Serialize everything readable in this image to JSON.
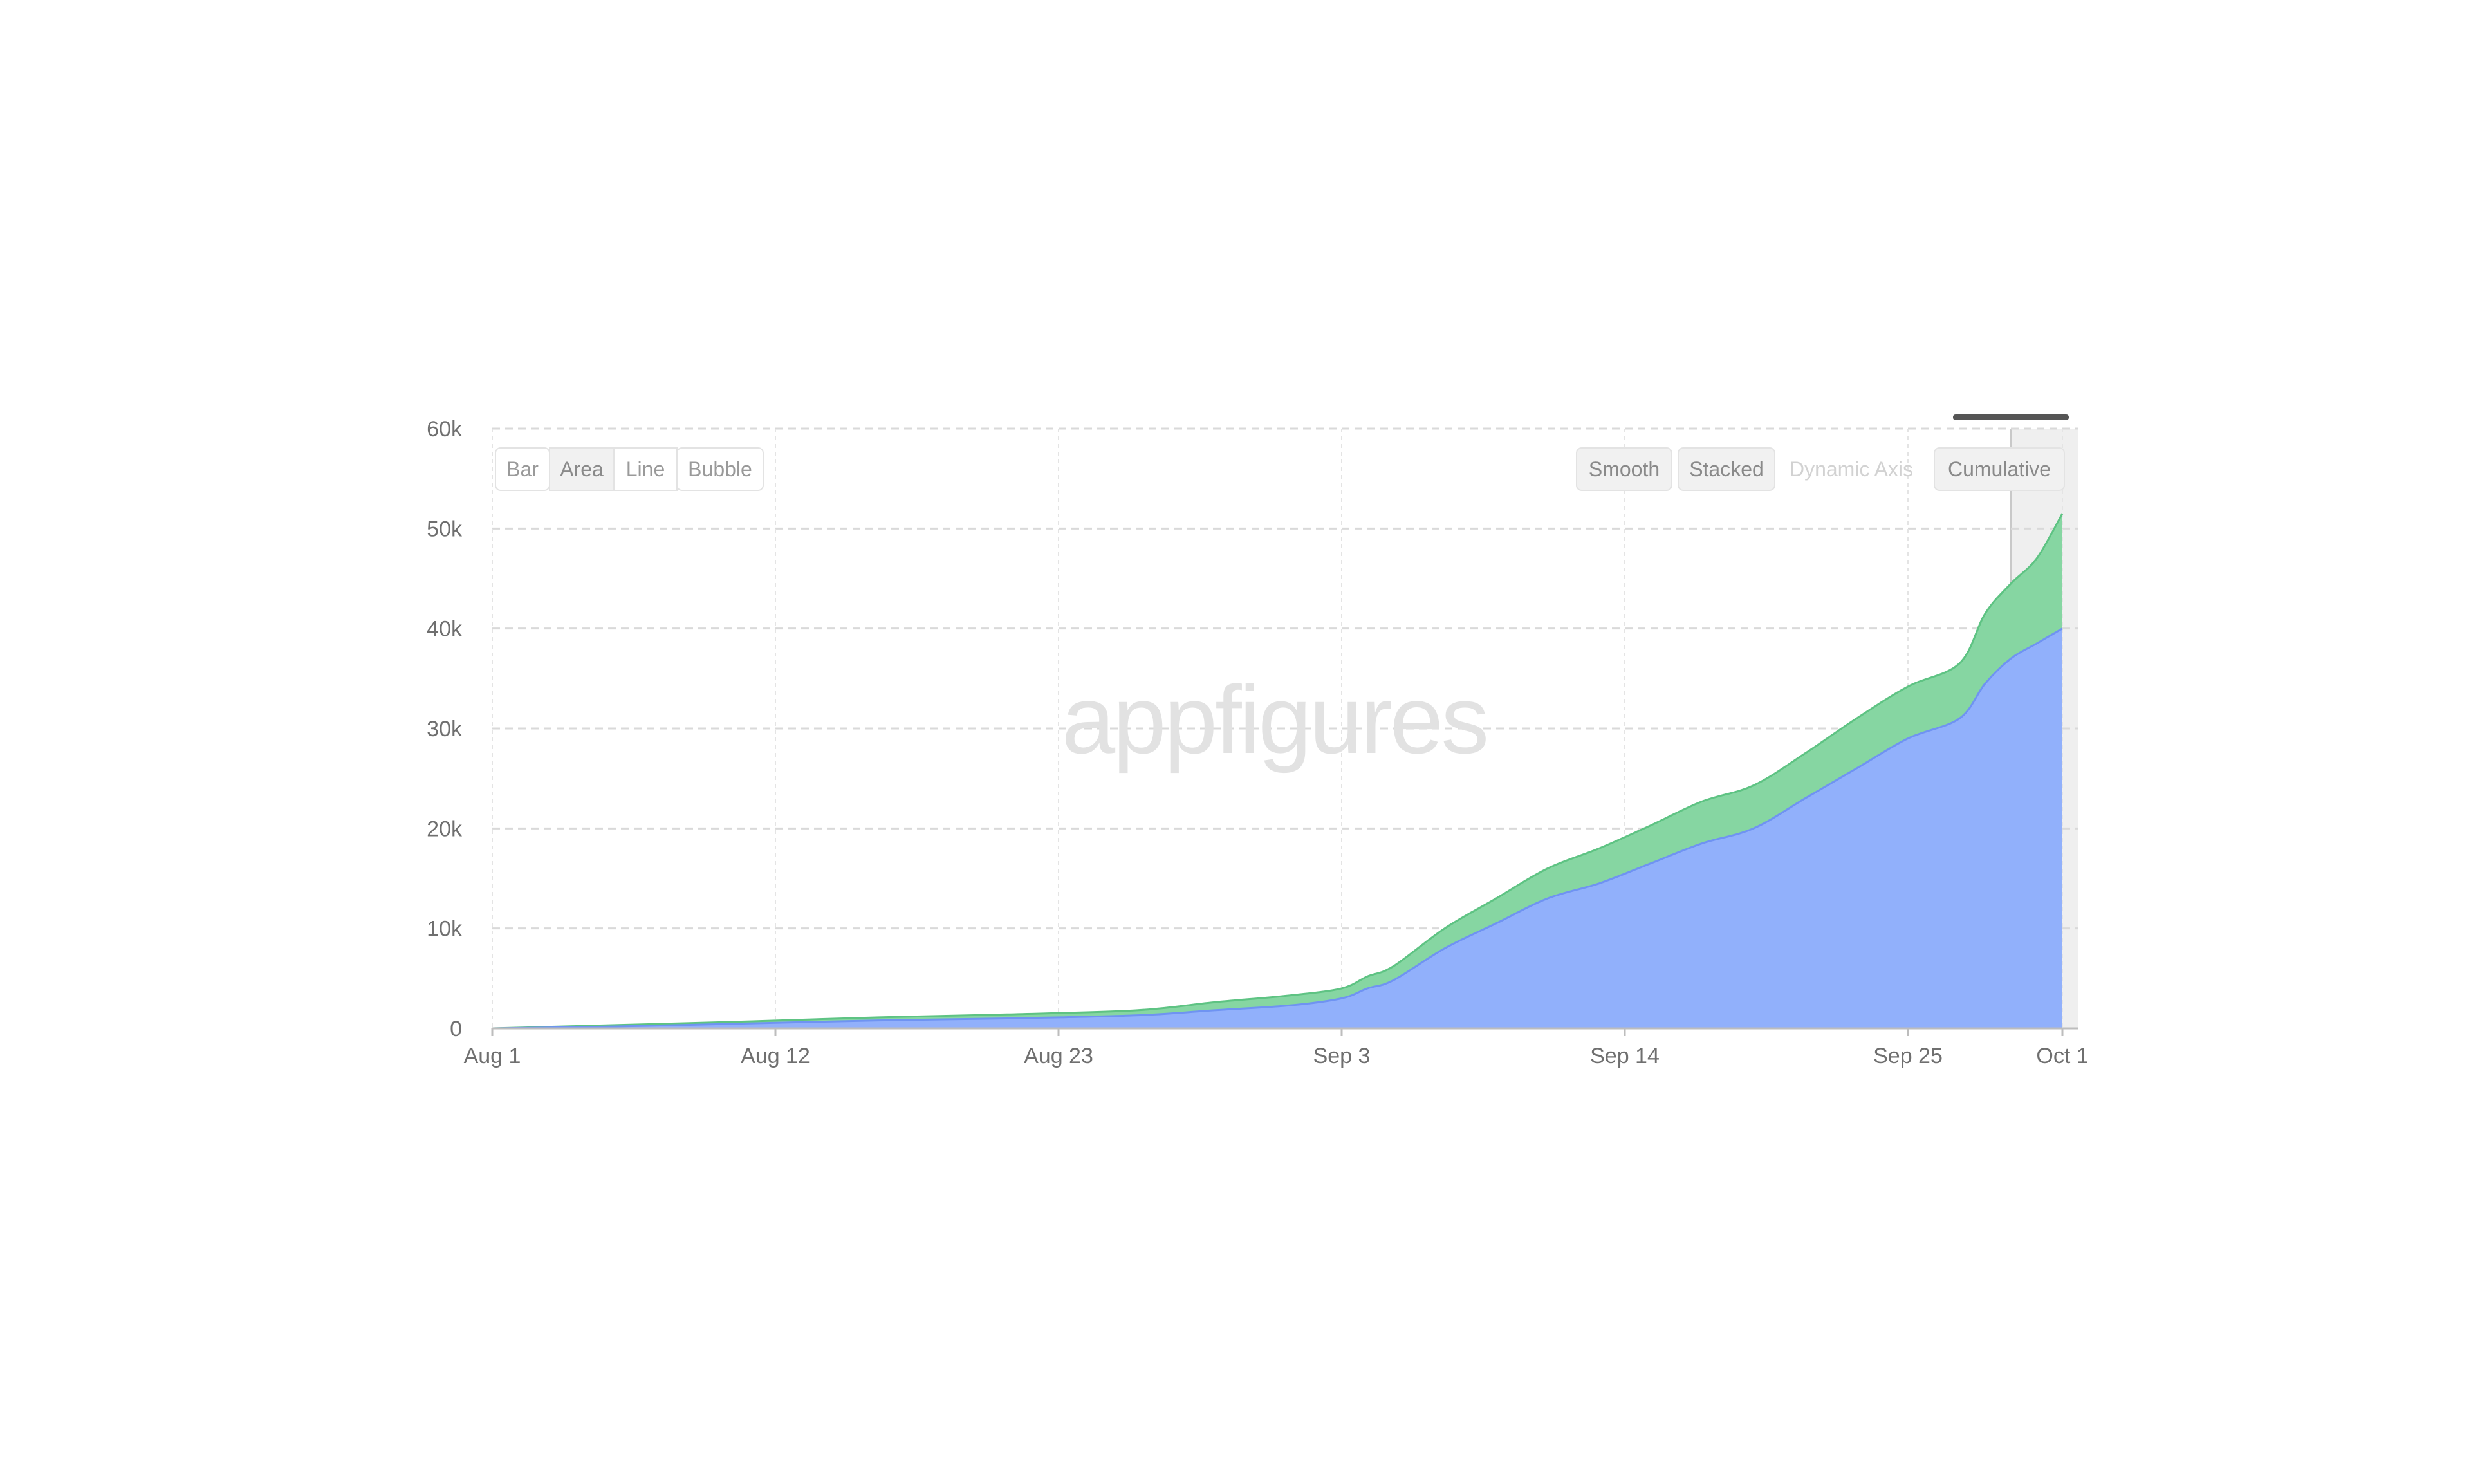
{
  "watermark": "appfigures",
  "chart_type_buttons": [
    {
      "label": "Bar",
      "active": false
    },
    {
      "label": "Area",
      "active": true
    },
    {
      "label": "Line",
      "active": false
    },
    {
      "label": "Bubble",
      "active": false
    }
  ],
  "option_buttons": [
    {
      "label": "Smooth",
      "state": "active"
    },
    {
      "label": "Stacked",
      "state": "active"
    },
    {
      "label": "Dynamic Axis",
      "state": "disabled"
    },
    {
      "label": "Cumulative",
      "state": "active"
    }
  ],
  "colors": {
    "series_blue": "#91b0fb",
    "series_blue_line": "#6f93f2",
    "series_green": "#86d6a2",
    "series_green_line": "#5ec383",
    "grid": "#d9d9d9",
    "selection_band": "#efefef"
  },
  "chart_data": {
    "type": "area",
    "stacked": true,
    "cumulative": true,
    "smooth": true,
    "title": "",
    "xlabel": "",
    "ylabel": "",
    "x_tick_labels": [
      "Aug 1",
      "Aug 12",
      "Aug 23",
      "Sep 3",
      "Sep 14",
      "Sep 25",
      "Oct 1"
    ],
    "x_tick_days": [
      0,
      11,
      22,
      33,
      44,
      55,
      61
    ],
    "y_tick_labels": [
      "0",
      "10k",
      "20k",
      "30k",
      "40k",
      "50k",
      "60k"
    ],
    "y_tick_values": [
      0,
      10000,
      20000,
      30000,
      40000,
      50000,
      60000
    ],
    "ylim": [
      0,
      60000
    ],
    "xlim_days": [
      0,
      61
    ],
    "grid": true,
    "legend": "none",
    "highlighted_range": [
      "Sep 29",
      "Oct 1"
    ],
    "x_dates": [
      "Aug 1",
      "Aug 6",
      "Aug 11",
      "Aug 16",
      "Aug 21",
      "Aug 26",
      "Aug 29",
      "Sep 1",
      "Sep 3",
      "Sep 4",
      "Sep 5",
      "Sep 7",
      "Sep 9",
      "Sep 11",
      "Sep 13",
      "Sep 15",
      "Sep 17",
      "Sep 19",
      "Sep 21",
      "Sep 23",
      "Sep 25",
      "Sep 27",
      "Sep 28",
      "Sep 29",
      "Sep 30",
      "Oct 1"
    ],
    "x_days": [
      0,
      5,
      10,
      15,
      20,
      25,
      28,
      31,
      33,
      34,
      35,
      37,
      39,
      41,
      43,
      45,
      47,
      49,
      51,
      53,
      55,
      57,
      58,
      59,
      60,
      61
    ],
    "series": [
      {
        "values": [
          0,
          200,
          500,
          800,
          1000,
          1300,
          1800,
          2300,
          3000,
          4000,
          4800,
          8000,
          10500,
          13000,
          14500,
          16500,
          18500,
          20000,
          23000,
          26000,
          29000,
          31000,
          34500,
          37000,
          38500,
          40000
        ]
      },
      {
        "values": [
          0,
          150,
          200,
          300,
          400,
          500,
          800,
          1000,
          1000,
          1200,
          1400,
          2000,
          2500,
          3000,
          3500,
          3800,
          4200,
          4300,
          4500,
          5000,
          5200,
          5500,
          7000,
          7500,
          8500,
          11500
        ]
      }
    ]
  }
}
